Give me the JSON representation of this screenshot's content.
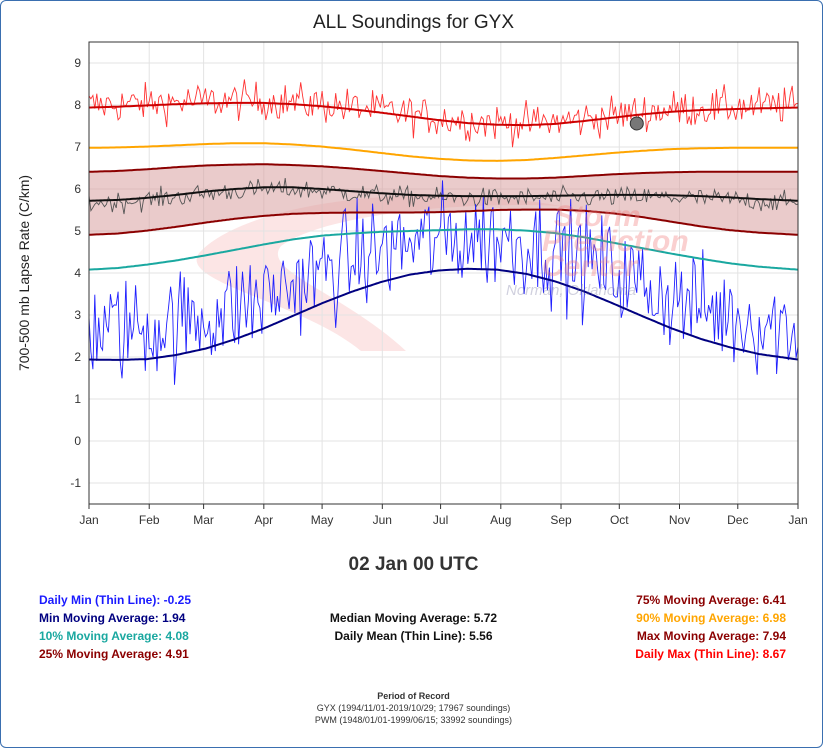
{
  "chart_data": {
    "type": "line",
    "title": "ALL Soundings for GYX",
    "ylabel": "700-500 mb Lapse Rate (C/km)",
    "xlabel": "",
    "ylim": [
      -1.5,
      9.5
    ],
    "yticks": [
      -1,
      0,
      1,
      2,
      3,
      4,
      5,
      6,
      7,
      8,
      9
    ],
    "xlim": [
      0,
      365
    ],
    "month_ticks": [
      {
        "label": "Jan",
        "day": 0
      },
      {
        "label": "Feb",
        "day": 31
      },
      {
        "label": "Mar",
        "day": 59
      },
      {
        "label": "Apr",
        "day": 90
      },
      {
        "label": "May",
        "day": 120
      },
      {
        "label": "Jun",
        "day": 151
      },
      {
        "label": "Jul",
        "day": 181
      },
      {
        "label": "Aug",
        "day": 212
      },
      {
        "label": "Sep",
        "day": 243
      },
      {
        "label": "Oct",
        "day": 273
      },
      {
        "label": "Nov",
        "day": 304
      },
      {
        "label": "Dec",
        "day": 334
      },
      {
        "label": "Jan",
        "day": 365
      }
    ],
    "grid": true,
    "moving_averages": {
      "x": [
        0,
        15,
        30,
        45,
        60,
        75,
        90,
        105,
        120,
        135,
        150,
        165,
        180,
        195,
        210,
        225,
        240,
        255,
        270,
        285,
        300,
        315,
        330,
        345,
        365
      ],
      "max": [
        7.94,
        7.96,
        7.99,
        8.02,
        8.04,
        8.05,
        8.05,
        8.02,
        7.97,
        7.9,
        7.82,
        7.73,
        7.64,
        7.57,
        7.53,
        7.52,
        7.55,
        7.62,
        7.7,
        7.78,
        7.84,
        7.88,
        7.9,
        7.92,
        7.94
      ],
      "p90": [
        6.98,
        6.99,
        7.01,
        7.04,
        7.07,
        7.09,
        7.09,
        7.06,
        7.01,
        6.94,
        6.86,
        6.78,
        6.72,
        6.68,
        6.67,
        6.69,
        6.74,
        6.8,
        6.86,
        6.91,
        6.95,
        6.97,
        6.98,
        6.98,
        6.98
      ],
      "p75": [
        6.41,
        6.43,
        6.47,
        6.52,
        6.56,
        6.58,
        6.59,
        6.57,
        6.54,
        6.49,
        6.43,
        6.37,
        6.31,
        6.27,
        6.25,
        6.25,
        6.27,
        6.31,
        6.35,
        6.38,
        6.4,
        6.41,
        6.41,
        6.41,
        6.41
      ],
      "median": [
        5.72,
        5.74,
        5.79,
        5.86,
        5.94,
        6.0,
        6.04,
        6.04,
        6.0,
        5.95,
        5.9,
        5.86,
        5.84,
        5.83,
        5.83,
        5.83,
        5.84,
        5.85,
        5.86,
        5.86,
        5.85,
        5.83,
        5.8,
        5.76,
        5.72
      ],
      "p25": [
        4.91,
        4.94,
        5.01,
        5.1,
        5.2,
        5.29,
        5.36,
        5.41,
        5.43,
        5.44,
        5.44,
        5.44,
        5.45,
        5.47,
        5.5,
        5.51,
        5.51,
        5.48,
        5.42,
        5.33,
        5.22,
        5.11,
        5.02,
        4.96,
        4.91
      ],
      "p10": [
        4.08,
        4.12,
        4.2,
        4.3,
        4.42,
        4.55,
        4.68,
        4.8,
        4.89,
        4.94,
        4.98,
        5.0,
        5.02,
        5.04,
        5.04,
        5.01,
        4.95,
        4.85,
        4.72,
        4.59,
        4.46,
        4.34,
        4.23,
        4.15,
        4.08
      ],
      "min": [
        1.94,
        1.93,
        1.95,
        2.05,
        2.2,
        2.42,
        2.68,
        2.98,
        3.28,
        3.55,
        3.78,
        3.96,
        4.06,
        4.1,
        4.08,
        3.98,
        3.8,
        3.56,
        3.27,
        2.97,
        2.68,
        2.43,
        2.23,
        2.07,
        1.94
      ]
    },
    "daily_series": {
      "daily_max_around": 8.0,
      "daily_mean_around": 5.8,
      "daily_min_around": 2.8
    },
    "marker": {
      "x": 282,
      "y": 7.56
    },
    "colors": {
      "max": "#cc0000",
      "daily_max": "#ff3333",
      "p90": "#ffa500",
      "p75": "#8b0000",
      "p25": "#8b0000",
      "band": "#d9a0a0",
      "median": "#111111",
      "daily_mean": "#555555",
      "p10": "#1aa8a0",
      "min": "#000080",
      "daily_min": "#2020ff"
    }
  },
  "selected_date": "02 Jan 00 UTC",
  "stats_left": [
    {
      "label": "Daily Min (Thin Line): -0.25",
      "color": "#1a1aff"
    },
    {
      "label": "Min Moving Average: 1.94",
      "color": "#000080"
    },
    {
      "label": "10% Moving Average: 4.08",
      "color": "#1aa8a0"
    },
    {
      "label": "25% Moving Average: 4.91",
      "color": "#8b0000"
    }
  ],
  "stats_center": [
    {
      "label": "Median Moving Average: 5.72"
    },
    {
      "label": "Daily Mean (Thin Line): 5.56"
    }
  ],
  "stats_right": [
    {
      "label": "75% Moving Average: 6.41",
      "color": "#8b0000"
    },
    {
      "label": "90% Moving Average: 6.98",
      "color": "#ffa500"
    },
    {
      "label": "Max Moving Average: 7.94",
      "color": "#8b0000"
    },
    {
      "label": "Daily Max (Thin Line): 8.67",
      "color": "#ff0000"
    }
  ],
  "record": {
    "header": "Period of Record",
    "line1": "GYX (1994/11/01-2019/10/29; 17967 soundings)",
    "line2": "PWM (1948/01/01-1999/06/15; 33992 soundings)"
  },
  "watermark": {
    "line1": "Storm",
    "line2": "Prediction",
    "line3": "Center",
    "line4": "Norman, Oklahoma"
  }
}
